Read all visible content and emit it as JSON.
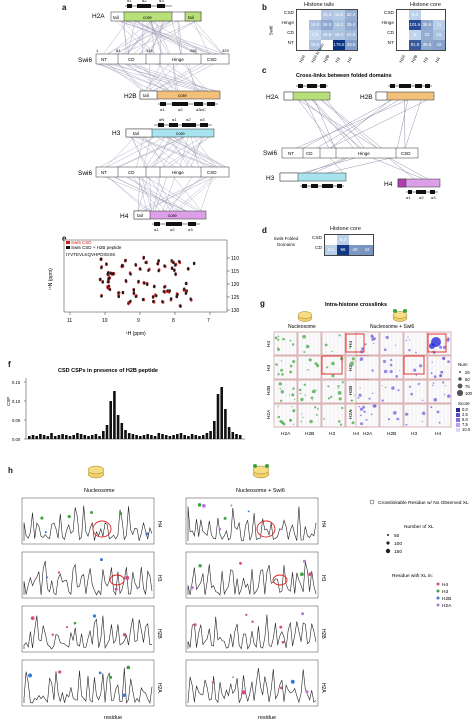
{
  "panels": {
    "a": {
      "label": "a",
      "h2a": {
        "name": "H2A",
        "tail": "tail",
        "core": "core",
        "tail2": "tail",
        "ss": [
          "α1",
          "α2",
          "α3"
        ]
      },
      "swi6": {
        "name": "Swi6",
        "ticks": [
          "1",
          "81",
          "144",
          "266",
          "329"
        ],
        "domains": [
          "NT",
          "CD",
          "Hinge",
          "CSD"
        ]
      },
      "h2b": {
        "name": "H2B",
        "tail": "tail",
        "core": "core",
        "ss": [
          "α1",
          "α2",
          "α3αC"
        ]
      },
      "h3": {
        "name": "H3",
        "tail": "tail",
        "core": "core",
        "ss_top": [
          "αN",
          "α1",
          "α2",
          "α3"
        ]
      },
      "h4": {
        "name": "H4",
        "tail": "tail",
        "core": "core",
        "ss": [
          "α1",
          "α2",
          "α3"
        ]
      }
    },
    "b": {
      "label": "b",
      "tails_title": "Histone tails",
      "core_title": "Histone core",
      "swi6_label": "Swi6",
      "rows": [
        "CSD",
        "Hinge",
        "CD",
        "NT"
      ],
      "tail_cols": [
        "H2A",
        "H2A N term",
        "H2B",
        "H3",
        "H4"
      ],
      "core_cols": [
        "H2A",
        "H2B",
        "H3",
        "H4"
      ],
      "tails_values": [
        [
          "",
          "",
          "15.4",
          "11.9",
          "32.4"
        ],
        [
          "",
          "19.5",
          "36.5",
          "18.2",
          "35.4"
        ],
        [
          "",
          "2.9",
          "16.8",
          "18.3",
          "24.5"
        ],
        [
          "",
          "18.5",
          "",
          "176.6",
          "43.5"
        ]
      ],
      "core_values": [
        [
          "",
          "6.3",
          "",
          ""
        ],
        [
          "",
          "101.6",
          "36.6",
          "11"
        ],
        [
          "",
          "5",
          "33",
          "18"
        ],
        [
          "",
          "91.9",
          "36.6",
          "42"
        ]
      ]
    },
    "c": {
      "label": "c",
      "title": "Cross-links between folded domains",
      "h2a": "H2A",
      "h2b": "H2B",
      "swi6": "Swi6",
      "h3": "H3",
      "h4": "H4",
      "domains": [
        "NT",
        "CD",
        "Hinge",
        "CSD"
      ],
      "ss": [
        "α1",
        "α2",
        "α3"
      ]
    },
    "d": {
      "label": "d",
      "title": "Histone core",
      "row_title": "Swi6 Folded Domains",
      "rows": [
        "CSD",
        "CD"
      ],
      "values": [
        [
          "",
          "6.3",
          "",
          ""
        ],
        [
          "8.1",
          "96",
          "40",
          "42"
        ]
      ]
    },
    "e": {
      "label": "e",
      "legend": [
        "Swi6 CSD",
        "Swi6 CSD + H2B peptide"
      ],
      "sequence": "IYVTEVLKQVHPDIGISK",
      "xlabel": "¹H (ppm)",
      "ylabel": "¹⁵N (ppm)",
      "xticks": [
        "11",
        "10",
        "9",
        "8",
        "7"
      ],
      "yticks": [
        "110",
        "115",
        "120",
        "125",
        "130"
      ],
      "colors": {
        "free": "#d01e1e",
        "bound": "#111111"
      }
    },
    "f": {
      "label": "f",
      "title": "CSD CSPs in presence of H2B peptide",
      "ylabel": "CSP",
      "yticks": [
        "0.15",
        "0.10",
        "0.05",
        "0.00"
      ]
    },
    "g": {
      "label": "g",
      "title": "Intra-histone crosslinks",
      "left_title": "Nucleosome",
      "right_title": "Nucleosome + Swi6",
      "histones": [
        "H4",
        "H3",
        "H2B",
        "H2A"
      ],
      "xhist": [
        "H2A",
        "H2B",
        "H3",
        "H4"
      ],
      "num_title": "Num",
      "num_values": [
        "25",
        "50",
        "75",
        "100"
      ],
      "score_title": "Score",
      "score_values": [
        "0.0",
        "2.5",
        "5.0",
        "7.5",
        "10.0"
      ]
    },
    "h": {
      "label": "h",
      "left_title": "Nucleosome",
      "right_title": "Nucleosome + Swi6",
      "xlabel": "residue",
      "rows": [
        "H4",
        "H3",
        "H2B",
        "H2A"
      ],
      "legend1": "Crosslinkable Residue w/ No Observed XL",
      "legend_num_title": "Number of XL",
      "legend_num": [
        "50",
        "100",
        "150"
      ],
      "legend_res_title": "Residue with XL in:",
      "legend_res": [
        "H4",
        "H3",
        "H2B",
        "H2A"
      ],
      "res_colors": {
        "H4": "#d84a8a",
        "H3": "#3aa33a",
        "H2B": "#3a7ad8",
        "H2A": "#b07ad8"
      }
    }
  }
}
